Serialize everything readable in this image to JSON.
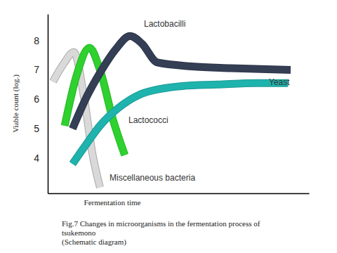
{
  "chart_data": {
    "type": "line",
    "title": "Fig.7 Changes in microorganisms in the fermentation process of tsukemono (Schematic diagram)",
    "x_label": "Fermentation time",
    "y_label": "Viable count (log.)",
    "xlim": [
      0,
      100
    ],
    "ylim": [
      2.8,
      8.9
    ],
    "yticks": [
      4,
      5,
      6,
      7,
      8
    ],
    "tick_labels": "y",
    "series": [
      {
        "name": "Miscellaneous bacteria",
        "color": "#d9d9d9",
        "x": [
          2,
          6,
          10,
          14,
          17,
          20
        ],
        "values": [
          6.6,
          7.2,
          7.6,
          6.0,
          4.2,
          3.0
        ]
      },
      {
        "name": "Lactococci",
        "color": "#2ed12e",
        "x": [
          6.5,
          11,
          16,
          20,
          25,
          29.5
        ],
        "values": [
          5.1,
          6.8,
          7.75,
          7.0,
          5.3,
          4.1
        ]
      },
      {
        "name": "Lactobacilli",
        "color": "#343e54",
        "x": [
          9.5,
          15,
          20,
          26,
          31.5,
          36,
          42,
          55,
          70,
          93
        ],
        "values": [
          5.0,
          6.1,
          6.9,
          7.7,
          8.15,
          7.9,
          7.25,
          7.12,
          7.06,
          7.0
        ]
      },
      {
        "name": "Yeast",
        "color": "#1fb3ad",
        "x": [
          9.5,
          15,
          20,
          27,
          35,
          43,
          51.5,
          65,
          80,
          92
        ],
        "values": [
          3.8,
          4.5,
          5.1,
          5.7,
          6.15,
          6.35,
          6.45,
          6.5,
          6.55,
          6.55
        ]
      }
    ]
  }
}
